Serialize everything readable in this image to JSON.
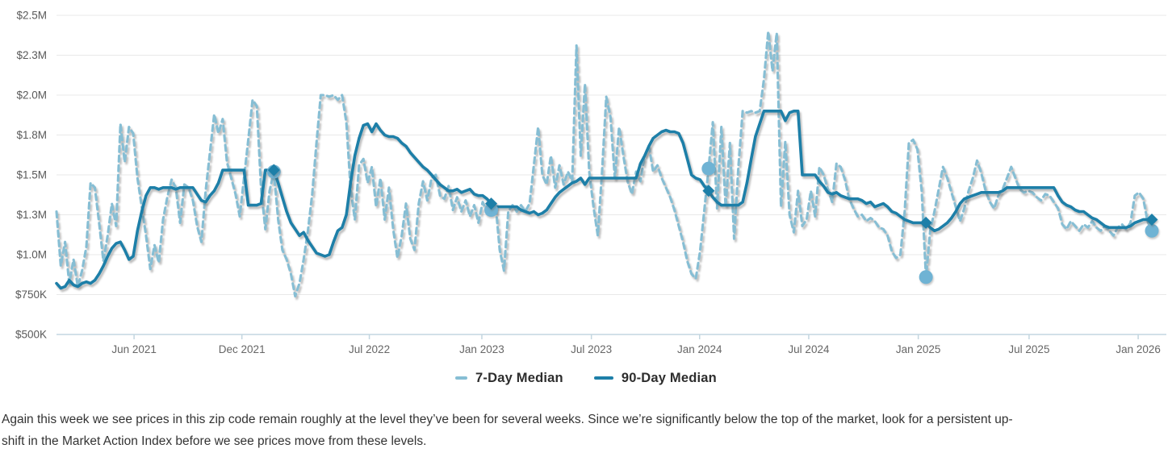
{
  "commentary": {
    "lines": [
      "Again this week we see prices in this zip code remain roughly at the level they’ve been for several weeks. Since we’re significantly below the top of the market, look for a persistent up-",
      "shift in the Market Action Index before we see prices move from these levels."
    ]
  },
  "chart_data": {
    "type": "line",
    "title": "",
    "xlabel": "",
    "ylabel": "",
    "grid": true,
    "legend_position": "bottom-center",
    "x_unit": "weeks (weekly data, ~Jan 2021 through ~Jan 2026)",
    "ylim": [
      0.5,
      2.5
    ],
    "y_ticks": [
      {
        "value": 2.5,
        "label": "$2.5M"
      },
      {
        "value": 2.25,
        "label": "$2.3M"
      },
      {
        "value": 2.0,
        "label": "$2.0M"
      },
      {
        "value": 1.75,
        "label": "$1.8M"
      },
      {
        "value": 1.5,
        "label": "$1.5M"
      },
      {
        "value": 1.25,
        "label": "$1.3M"
      },
      {
        "value": 1.0,
        "label": "$1.0M"
      },
      {
        "value": 0.75,
        "label": "$750K"
      },
      {
        "value": 0.5,
        "label": "$500K"
      }
    ],
    "x_ticks": [
      {
        "week": 18.2,
        "label": "Jun 2021"
      },
      {
        "week": 43.5,
        "label": "Dec 2021"
      },
      {
        "week": 73.4,
        "label": "Jul 2022"
      },
      {
        "week": 99.8,
        "label": "Jan 2023"
      },
      {
        "week": 125.5,
        "label": "Jul 2023"
      },
      {
        "week": 150.9,
        "label": "Jan 2024"
      },
      {
        "week": 176.5,
        "label": "Jul 2024"
      },
      {
        "week": 202.2,
        "label": "Jan 2025"
      },
      {
        "week": 228.2,
        "label": "Jul 2025"
      },
      {
        "week": 253.8,
        "label": "Jan 2026"
      }
    ],
    "colors": {
      "seven_day": "#86bed4",
      "ninety_day": "#1d7fa8",
      "circle_marker": "#6fb3d4",
      "diamond_marker": "#1d7fa8",
      "grid": "#e8e8e8",
      "axis": "#c3d6e0",
      "y_label": "#595959",
      "x_label": "#666666"
    },
    "series": [
      {
        "name": "7-Day Median",
        "style": "dashed",
        "color": "#86bed4",
        "values": [
          1.27,
          0.93,
          1.08,
          0.82,
          0.97,
          0.8,
          0.9,
          1.05,
          1.45,
          1.42,
          1.2,
          0.96,
          1.12,
          1.32,
          1.18,
          1.82,
          1.58,
          1.8,
          1.76,
          1.48,
          1.3,
          1.12,
          0.91,
          1.06,
          0.95,
          1.22,
          1.36,
          1.47,
          1.42,
          1.2,
          1.44,
          1.42,
          1.34,
          1.18,
          1.08,
          1.4,
          1.64,
          1.88,
          1.76,
          1.85,
          1.58,
          1.48,
          1.38,
          1.24,
          1.48,
          1.72,
          1.97,
          1.93,
          1.42,
          1.16,
          1.4,
          1.52,
          1.22,
          1.03,
          0.97,
          0.88,
          0.74,
          0.82,
          0.97,
          1.15,
          1.38,
          1.7,
          2.0,
          2.0,
          1.99,
          2.0,
          1.97,
          2.0,
          1.83,
          1.42,
          1.22,
          1.56,
          1.6,
          1.45,
          1.55,
          1.3,
          1.48,
          1.22,
          1.42,
          1.16,
          0.98,
          1.12,
          1.32,
          1.1,
          1.03,
          1.32,
          1.46,
          1.34,
          1.48,
          1.5,
          1.37,
          1.35,
          1.43,
          1.28,
          1.36,
          1.27,
          1.34,
          1.24,
          1.31,
          1.2,
          1.33,
          1.27,
          1.28,
          1.32,
          1.03,
          0.9,
          1.27,
          1.31,
          1.27,
          1.31,
          1.27,
          1.32,
          1.56,
          1.8,
          1.5,
          1.44,
          1.62,
          1.42,
          1.56,
          1.44,
          1.52,
          1.46,
          2.31,
          1.62,
          2.07,
          1.52,
          1.3,
          1.12,
          1.52,
          1.99,
          1.86,
          1.48,
          1.8,
          1.62,
          1.46,
          1.38,
          1.52,
          1.46,
          1.62,
          1.68,
          1.52,
          1.56,
          1.48,
          1.42,
          1.36,
          1.28,
          1.18,
          1.08,
          0.96,
          0.88,
          0.85,
          1.02,
          1.28,
          1.54,
          1.83,
          1.29,
          1.8,
          1.3,
          1.7,
          1.1,
          1.55,
          1.9,
          1.89,
          1.9,
          1.89,
          1.9,
          2.1,
          2.4,
          2.15,
          2.39,
          1.3,
          1.71,
          1.25,
          1.14,
          1.4,
          1.18,
          1.22,
          1.4,
          1.24,
          1.55,
          1.5,
          1.41,
          1.33,
          1.57,
          1.55,
          1.47,
          1.35,
          1.29,
          1.24,
          1.25,
          1.21,
          1.23,
          1.21,
          1.17,
          1.16,
          1.12,
          1.02,
          0.98,
          1.0,
          1.27,
          1.7,
          1.72,
          1.66,
          1.4,
          0.86,
          1.15,
          1.27,
          1.41,
          1.55,
          1.48,
          1.39,
          1.3,
          1.21,
          1.29,
          1.4,
          1.48,
          1.59,
          1.51,
          1.4,
          1.33,
          1.29,
          1.37,
          1.41,
          1.48,
          1.55,
          1.48,
          1.41,
          1.39,
          1.4,
          1.39,
          1.36,
          1.34,
          1.38,
          1.37,
          1.33,
          1.29,
          1.19,
          1.16,
          1.21,
          1.18,
          1.15,
          1.19,
          1.17,
          1.21,
          1.17,
          1.15,
          1.18,
          1.15,
          1.12,
          1.17,
          1.19,
          1.16,
          1.2,
          1.37,
          1.39,
          1.35,
          1.21,
          1.15
        ]
      },
      {
        "name": "90-Day Median",
        "style": "solid",
        "color": "#1d7fa8",
        "values": [
          0.82,
          0.79,
          0.8,
          0.84,
          0.81,
          0.8,
          0.82,
          0.83,
          0.82,
          0.84,
          0.88,
          0.93,
          0.99,
          1.04,
          1.07,
          1.08,
          1.03,
          0.97,
          0.99,
          1.15,
          1.27,
          1.37,
          1.42,
          1.42,
          1.41,
          1.42,
          1.42,
          1.42,
          1.41,
          1.42,
          1.42,
          1.42,
          1.42,
          1.38,
          1.34,
          1.33,
          1.37,
          1.4,
          1.45,
          1.53,
          1.53,
          1.53,
          1.53,
          1.53,
          1.53,
          1.31,
          1.31,
          1.31,
          1.32,
          1.53,
          1.53,
          1.53,
          1.45,
          1.36,
          1.27,
          1.2,
          1.16,
          1.12,
          1.14,
          1.09,
          1.05,
          1.01,
          1.0,
          0.99,
          1.0,
          1.08,
          1.15,
          1.17,
          1.25,
          1.45,
          1.62,
          1.73,
          1.81,
          1.82,
          1.77,
          1.82,
          1.78,
          1.75,
          1.74,
          1.74,
          1.73,
          1.7,
          1.68,
          1.64,
          1.61,
          1.58,
          1.55,
          1.53,
          1.5,
          1.47,
          1.44,
          1.42,
          1.4,
          1.4,
          1.41,
          1.39,
          1.4,
          1.41,
          1.38,
          1.37,
          1.37,
          1.35,
          1.32,
          1.3,
          1.3,
          1.3,
          1.3,
          1.3,
          1.3,
          1.28,
          1.27,
          1.26,
          1.27,
          1.25,
          1.26,
          1.28,
          1.32,
          1.36,
          1.39,
          1.41,
          1.43,
          1.45,
          1.46,
          1.48,
          1.44,
          1.48,
          1.48,
          1.48,
          1.48,
          1.48,
          1.48,
          1.48,
          1.48,
          1.48,
          1.48,
          1.48,
          1.48,
          1.57,
          1.62,
          1.68,
          1.73,
          1.75,
          1.77,
          1.78,
          1.77,
          1.77,
          1.76,
          1.7,
          1.6,
          1.5,
          1.48,
          1.47,
          1.43,
          1.4,
          1.36,
          1.33,
          1.31,
          1.31,
          1.31,
          1.31,
          1.31,
          1.33,
          1.45,
          1.6,
          1.74,
          1.82,
          1.9,
          1.9,
          1.9,
          1.9,
          1.9,
          1.84,
          1.89,
          1.9,
          1.9,
          1.5,
          1.5,
          1.5,
          1.5,
          1.46,
          1.43,
          1.39,
          1.38,
          1.39,
          1.37,
          1.36,
          1.35,
          1.35,
          1.35,
          1.34,
          1.32,
          1.33,
          1.3,
          1.31,
          1.32,
          1.3,
          1.27,
          1.26,
          1.24,
          1.22,
          1.21,
          1.2,
          1.2,
          1.2,
          1.2,
          1.17,
          1.15,
          1.16,
          1.18,
          1.2,
          1.23,
          1.27,
          1.32,
          1.35,
          1.36,
          1.37,
          1.38,
          1.39,
          1.39,
          1.39,
          1.39,
          1.39,
          1.4,
          1.42,
          1.42,
          1.42,
          1.42,
          1.42,
          1.42,
          1.42,
          1.42,
          1.42,
          1.42,
          1.42,
          1.42,
          1.37,
          1.33,
          1.31,
          1.3,
          1.28,
          1.27,
          1.27,
          1.25,
          1.23,
          1.22,
          1.2,
          1.18,
          1.17,
          1.17,
          1.17,
          1.17,
          1.17,
          1.18,
          1.2,
          1.21,
          1.22,
          1.22,
          1.22
        ]
      }
    ],
    "markers": [
      {
        "series": "7-Day Median",
        "shape": "circle",
        "week": 51,
        "value": 1.52
      },
      {
        "series": "7-Day Median",
        "shape": "circle",
        "week": 102,
        "value": 1.28
      },
      {
        "series": "7-Day Median",
        "shape": "circle",
        "week": 153,
        "value": 1.54
      },
      {
        "series": "7-Day Median",
        "shape": "circle",
        "week": 204,
        "value": 0.86
      },
      {
        "series": "7-Day Median",
        "shape": "circle",
        "week": 257,
        "value": 1.15
      },
      {
        "series": "90-Day Median",
        "shape": "diamond",
        "week": 51,
        "value": 1.53
      },
      {
        "series": "90-Day Median",
        "shape": "diamond",
        "week": 102,
        "value": 1.32
      },
      {
        "series": "90-Day Median",
        "shape": "diamond",
        "week": 153,
        "value": 1.4
      },
      {
        "series": "90-Day Median",
        "shape": "diamond",
        "week": 204,
        "value": 1.2
      },
      {
        "series": "90-Day Median",
        "shape": "diamond",
        "week": 257,
        "value": 1.22
      }
    ]
  }
}
